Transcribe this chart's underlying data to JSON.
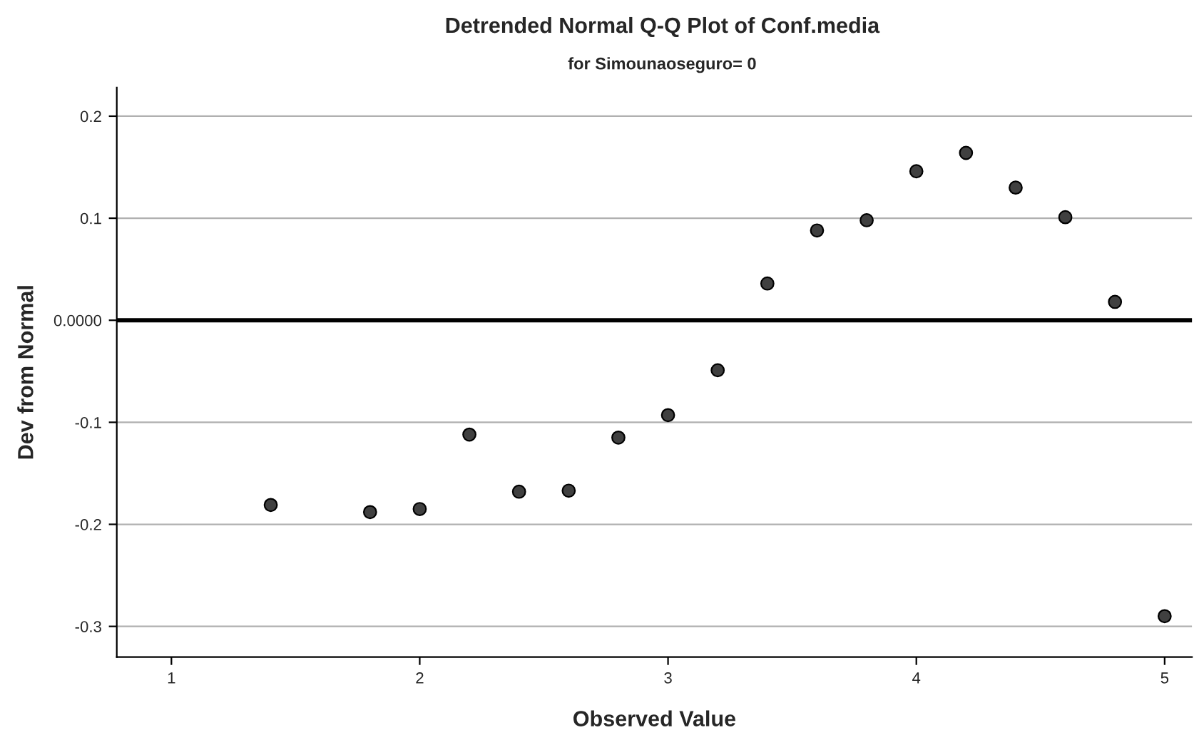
{
  "chart_data": {
    "type": "scatter",
    "title": "Detrended Normal Q-Q Plot of Conf.media",
    "subtitle": "for Simounaoseguro= 0",
    "xlabel": "Observed Value",
    "ylabel": "Dev from Normal",
    "x": [
      1.4,
      1.8,
      2.0,
      2.2,
      2.4,
      2.6,
      2.8,
      3.0,
      3.2,
      3.4,
      3.6,
      3.8,
      4.0,
      4.2,
      4.4,
      4.6,
      4.8,
      5.0
    ],
    "series": [
      {
        "color": "#404040",
        "values": [
          -0.181,
          -0.188,
          -0.185,
          -0.112,
          -0.168,
          -0.167,
          -0.115,
          -0.093,
          -0.049,
          0.036,
          0.088,
          0.098,
          0.146,
          0.164,
          0.13,
          0.101,
          0.018,
          -0.29
        ]
      }
    ],
    "xlim": [
      0.78,
      5.11
    ],
    "ylim": [
      -0.33,
      0.228
    ],
    "xticks": [
      1,
      2,
      3,
      4,
      5
    ],
    "yticks": [
      {
        "value": -0.3,
        "label": "-0.3"
      },
      {
        "value": -0.2,
        "label": "-0.2"
      },
      {
        "value": -0.1,
        "label": "-0.1"
      },
      {
        "value": 0,
        "label": "0.0000"
      },
      0.1,
      0.2
    ],
    "ref_lines": [
      {
        "axis": "y",
        "value": 0,
        "color": "#000000"
      }
    ],
    "grid": "y",
    "marker": "circle",
    "legend": false
  }
}
